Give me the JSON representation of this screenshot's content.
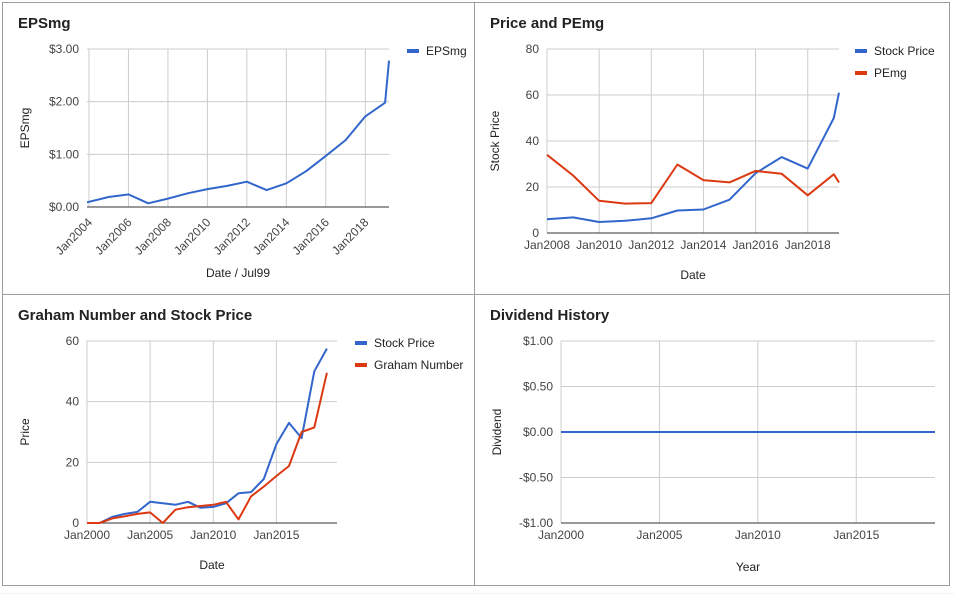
{
  "chart_data": [
    {
      "type": "line",
      "title": "EPSmg",
      "xlabel": "Date / Jul99",
      "ylabel": "EPSmg",
      "x_type": "year",
      "xlim": [
        2003.9,
        2019.2
      ],
      "ylim": [
        0,
        3
      ],
      "xticks": [
        {
          "v": 2004,
          "label": "Jan2004"
        },
        {
          "v": 2006,
          "label": "Jan2006"
        },
        {
          "v": 2008,
          "label": "Jan2008"
        },
        {
          "v": 2010,
          "label": "Jan2010"
        },
        {
          "v": 2012,
          "label": "Jan2012"
        },
        {
          "v": 2014,
          "label": "Jan2014"
        },
        {
          "v": 2016,
          "label": "Jan2016"
        },
        {
          "v": 2018,
          "label": "Jan2018"
        }
      ],
      "x_tick_rotate": true,
      "yticks": [
        {
          "v": 0,
          "label": "$0.00"
        },
        {
          "v": 1,
          "label": "$1.00"
        },
        {
          "v": 2,
          "label": "$2.00"
        },
        {
          "v": 3,
          "label": "$3.00"
        }
      ],
      "series": [
        {
          "name": "EPSmg",
          "color": "#3366cc",
          "points": [
            [
              2003.9,
              0.09
            ],
            [
              2005,
              0.19
            ],
            [
              2006,
              0.24
            ],
            [
              2007,
              0.07
            ],
            [
              2008,
              0.16
            ],
            [
              2009,
              0.26
            ],
            [
              2010,
              0.34
            ],
            [
              2011,
              0.4
            ],
            [
              2012,
              0.48
            ],
            [
              2013,
              0.32
            ],
            [
              2014,
              0.45
            ],
            [
              2015,
              0.68
            ],
            [
              2016,
              0.97
            ],
            [
              2017,
              1.27
            ],
            [
              2018,
              1.72
            ],
            [
              2019,
              1.98
            ],
            [
              2019.2,
              2.78
            ]
          ]
        }
      ],
      "legend": "right"
    },
    {
      "type": "line",
      "title": "Price and PEmg",
      "xlabel": "Date",
      "ylabel": "Stock Price",
      "x_type": "year",
      "xlim": [
        2008,
        2019.2
      ],
      "ylim": [
        0,
        80
      ],
      "xticks": [
        {
          "v": 2008,
          "label": "Jan2008"
        },
        {
          "v": 2010,
          "label": "Jan2010"
        },
        {
          "v": 2012,
          "label": "Jan2012"
        },
        {
          "v": 2014,
          "label": "Jan2014"
        },
        {
          "v": 2016,
          "label": "Jan2016"
        },
        {
          "v": 2018,
          "label": "Jan2018"
        }
      ],
      "x_tick_rotate": false,
      "yticks": [
        {
          "v": 0,
          "label": "0"
        },
        {
          "v": 20,
          "label": "20"
        },
        {
          "v": 40,
          "label": "40"
        },
        {
          "v": 60,
          "label": "60"
        },
        {
          "v": 80,
          "label": "80"
        }
      ],
      "series": [
        {
          "name": "Stock Price",
          "color": "#3366cc",
          "points": [
            [
              2008,
              6
            ],
            [
              2009,
              6.8
            ],
            [
              2010,
              4.8
            ],
            [
              2011,
              5.3
            ],
            [
              2012,
              6.4
            ],
            [
              2013,
              9.8
            ],
            [
              2014,
              10.2
            ],
            [
              2015,
              14.5
            ],
            [
              2016,
              26
            ],
            [
              2017,
              33
            ],
            [
              2018,
              28
            ],
            [
              2019,
              50
            ],
            [
              2019.2,
              61
            ]
          ]
        },
        {
          "name": "PEmg",
          "color": "#dc3912",
          "points": [
            [
              2008,
              34
            ],
            [
              2009,
              25
            ],
            [
              2010,
              14
            ],
            [
              2011,
              12.8
            ],
            [
              2012,
              13
            ],
            [
              2013,
              29.8
            ],
            [
              2014,
              23
            ],
            [
              2015,
              22
            ],
            [
              2016,
              27
            ],
            [
              2017,
              25.8
            ],
            [
              2018,
              16.4
            ],
            [
              2019,
              25.5
            ],
            [
              2019.2,
              22
            ]
          ]
        }
      ],
      "legend": "right"
    },
    {
      "type": "line",
      "title": "Graham Number and Stock Price",
      "xlabel": "Date",
      "ylabel": "Price",
      "x_type": "year",
      "xlim": [
        2000,
        2019.8
      ],
      "ylim": [
        0,
        60
      ],
      "xticks": [
        {
          "v": 2000,
          "label": "Jan2000"
        },
        {
          "v": 2005,
          "label": "Jan2005"
        },
        {
          "v": 2010,
          "label": "Jan2010"
        },
        {
          "v": 2015,
          "label": "Jan2015"
        }
      ],
      "x_tick_rotate": false,
      "yticks": [
        {
          "v": 0,
          "label": "0"
        },
        {
          "v": 20,
          "label": "20"
        },
        {
          "v": 40,
          "label": "40"
        },
        {
          "v": 60,
          "label": "60"
        }
      ],
      "series": [
        {
          "name": "Stock Price",
          "color": "#3366cc",
          "points": [
            [
              2000,
              0
            ],
            [
              2001,
              0
            ],
            [
              2002,
              2
            ],
            [
              2003,
              3
            ],
            [
              2004,
              3.7
            ],
            [
              2005,
              7
            ],
            [
              2006,
              6.5
            ],
            [
              2007,
              6
            ],
            [
              2008,
              7
            ],
            [
              2009,
              5
            ],
            [
              2010,
              5.3
            ],
            [
              2011,
              6.5
            ],
            [
              2012,
              9.8
            ],
            [
              2013,
              10.2
            ],
            [
              2014,
              14.5
            ],
            [
              2015,
              26
            ],
            [
              2016,
              33
            ],
            [
              2017,
              28
            ],
            [
              2018,
              50
            ],
            [
              2019,
              57.5
            ]
          ]
        },
        {
          "name": "Graham Number",
          "color": "#dc3912",
          "points": [
            [
              2000,
              0
            ],
            [
              2001,
              0
            ],
            [
              2002,
              1.5
            ],
            [
              2003,
              2.2
            ],
            [
              2004,
              3
            ],
            [
              2005,
              3.5
            ],
            [
              2006,
              0
            ],
            [
              2007,
              4.4
            ],
            [
              2008,
              5.2
            ],
            [
              2009,
              5.6
            ],
            [
              2010,
              6
            ],
            [
              2011,
              7
            ],
            [
              2012,
              1.2
            ],
            [
              2013,
              8.8
            ],
            [
              2014,
              12
            ],
            [
              2015,
              15.5
            ],
            [
              2016,
              18.8
            ],
            [
              2017,
              30
            ],
            [
              2018,
              31.5
            ],
            [
              2019,
              49.5
            ]
          ]
        }
      ],
      "legend": "right"
    },
    {
      "type": "line",
      "title": "Dividend History",
      "xlabel": "Year",
      "ylabel": "Dividend",
      "x_type": "year",
      "xlim": [
        2000,
        2019
      ],
      "ylim": [
        -1,
        1
      ],
      "xticks": [
        {
          "v": 2000,
          "label": "Jan2000"
        },
        {
          "v": 2005,
          "label": "Jan2005"
        },
        {
          "v": 2010,
          "label": "Jan2010"
        },
        {
          "v": 2015,
          "label": "Jan2015"
        }
      ],
      "x_tick_rotate": false,
      "yticks": [
        {
          "v": -1,
          "label": "-$1.00"
        },
        {
          "v": -0.5,
          "label": "-$0.50"
        },
        {
          "v": 0,
          "label": "$0.00"
        },
        {
          "v": 0.5,
          "label": "$0.50"
        },
        {
          "v": 1,
          "label": "$1.00"
        }
      ],
      "series": [
        {
          "name": "",
          "color": "#3366cc",
          "points": [
            [
              2000,
              0
            ],
            [
              2001,
              0
            ],
            [
              2005,
              0
            ],
            [
              2010,
              0
            ],
            [
              2015,
              0
            ],
            [
              2019,
              0
            ]
          ]
        }
      ],
      "legend": "none"
    }
  ]
}
